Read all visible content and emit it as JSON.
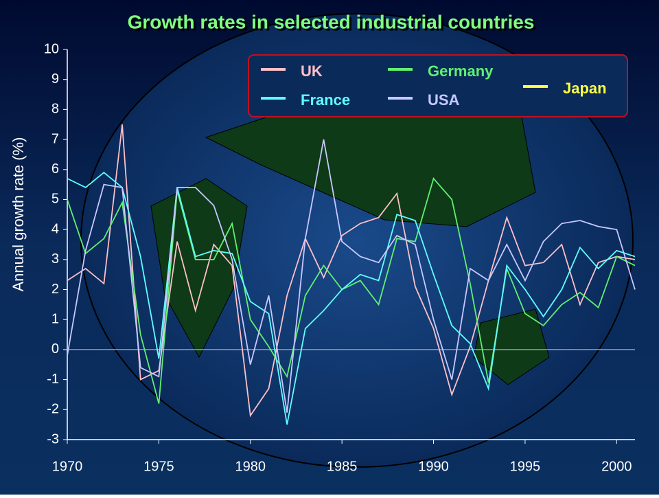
{
  "chart_data": {
    "type": "line",
    "title": "Growth rates in selected industrial countries",
    "y_label": "Annual growth rate (%)",
    "x": [
      1970,
      1971,
      1972,
      1973,
      1974,
      1975,
      1976,
      1977,
      1978,
      1979,
      1980,
      1981,
      1982,
      1983,
      1984,
      1985,
      1986,
      1987,
      1988,
      1989,
      1990,
      1991,
      1992,
      1993,
      1994,
      1995,
      1996,
      1997,
      1998,
      1999,
      2000,
      2001
    ],
    "xlim": [
      1970,
      2001
    ],
    "xticks": [
      1970,
      1975,
      1980,
      1985,
      1990,
      1995,
      2000
    ],
    "ylim": [
      -3,
      10
    ],
    "yticks": [
      -3,
      -2,
      -1,
      0,
      1,
      2,
      3,
      4,
      5,
      6,
      7,
      8,
      9,
      10
    ],
    "series": [
      {
        "name": "UK",
        "color": "#ffc0c8",
        "values": [
          2.3,
          2.7,
          2.2,
          7.5,
          -1.0,
          -0.7,
          3.6,
          1.3,
          3.5,
          2.8,
          -2.2,
          -1.3,
          1.8,
          3.7,
          2.4,
          3.8,
          4.2,
          4.4,
          5.2,
          2.1,
          0.7,
          -1.5,
          0.1,
          2.3,
          4.4,
          2.8,
          2.9,
          3.5,
          1.5,
          2.9,
          3.1,
          3.0
        ]
      },
      {
        "name": "Germany",
        "color": "#60f070",
        "values": [
          5.0,
          3.2,
          3.7,
          4.9,
          0.5,
          -1.8,
          5.3,
          3.0,
          3.0,
          4.2,
          1.0,
          0.1,
          -0.9,
          1.8,
          2.8,
          2.0,
          2.3,
          1.5,
          3.7,
          3.6,
          5.7,
          5.0,
          2.2,
          -1.1,
          2.7,
          1.2,
          0.8,
          1.5,
          1.9,
          1.4,
          3.1,
          2.8
        ]
      },
      {
        "name": "Japan",
        "color": "#ffff40",
        "values": [
          null,
          null,
          null,
          null,
          null,
          null,
          null,
          null,
          null,
          null,
          null,
          null,
          null,
          null,
          null,
          null,
          null,
          null,
          null,
          null,
          null,
          null,
          null,
          null,
          null,
          null,
          null,
          null,
          null,
          null,
          null,
          null
        ]
      },
      {
        "name": "France",
        "color": "#60ffff",
        "values": [
          5.7,
          5.4,
          5.9,
          5.4,
          3.1,
          -0.3,
          5.4,
          3.1,
          3.3,
          3.2,
          1.6,
          1.2,
          -2.5,
          0.7,
          1.3,
          2.0,
          2.5,
          2.3,
          4.5,
          4.3,
          2.5,
          0.8,
          0.2,
          -1.3,
          2.8,
          2.0,
          1.1,
          2.0,
          3.4,
          2.7,
          3.3,
          3.1
        ]
      },
      {
        "name": "USA",
        "color": "#c8c8ff",
        "values": [
          -0.2,
          3.3,
          5.5,
          5.4,
          -0.6,
          -0.9,
          5.4,
          5.4,
          4.8,
          3.0,
          -0.5,
          1.8,
          -2.1,
          3.7,
          7.0,
          3.6,
          3.1,
          2.9,
          3.8,
          3.5,
          1.0,
          -1.0,
          2.7,
          2.3,
          3.5,
          2.3,
          3.6,
          4.2,
          4.3,
          4.1,
          4.0,
          2.0
        ]
      }
    ]
  }
}
